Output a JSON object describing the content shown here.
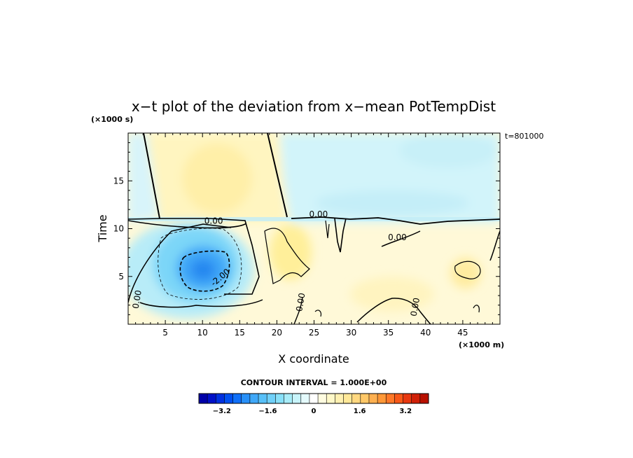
{
  "chart_data": {
    "type": "heatmap",
    "title": "x−t plot of the deviation from x−mean PotTempDist",
    "xlabel": "X coordinate",
    "ylabel": "Time",
    "x_unit": "(×1000 m)",
    "y_unit": "(×1000 s)",
    "timestamp": "t=801000",
    "contour_interval_text": "CONTOUR INTERVAL = 1.000E+00",
    "xlim": [
      0,
      50
    ],
    "ylim": [
      0,
      20
    ],
    "xticks": [
      5,
      10,
      15,
      20,
      25,
      30,
      35,
      40,
      45
    ],
    "yticks": [
      5,
      10,
      15
    ],
    "colorbar": {
      "range": [
        -4,
        4
      ],
      "ticks": [
        "−3.2",
        "−1.6",
        "0",
        "1.6",
        "3.2"
      ],
      "tick_values": [
        -3.2,
        -1.6,
        0,
        1.6,
        3.2
      ],
      "colors": [
        "#0000a8",
        "#0010c8",
        "#0030e0",
        "#0050f0",
        "#1070f8",
        "#2890f8",
        "#40a8f8",
        "#58c0f8",
        "#70d0f8",
        "#88e0f8",
        "#a8ecf8",
        "#c8f4fa",
        "#e4fafc",
        "#ffffff",
        "#fffce0",
        "#fff8c8",
        "#fff0b0",
        "#ffe898",
        "#ffd880",
        "#ffc868",
        "#ffb050",
        "#ff9838",
        "#ff7828",
        "#f85818",
        "#e83810",
        "#d02008",
        "#b81000"
      ]
    },
    "contour_labels": [
      {
        "text": "0.00",
        "x": 11.5,
        "y": 10.8
      },
      {
        "text": "0.00",
        "x": 25.6,
        "y": 11.5
      },
      {
        "text": "0.00",
        "x": 36.2,
        "y": 9.1
      },
      {
        "text": "0.00",
        "x": 1.2,
        "y": 2.6
      },
      {
        "text": "0.00",
        "x": 23.2,
        "y": 2.3
      },
      {
        "text": "0.00",
        "x": 38.6,
        "y": 1.8
      },
      {
        "text": "-2.00",
        "x": 12.4,
        "y": 4.9
      }
    ]
  }
}
